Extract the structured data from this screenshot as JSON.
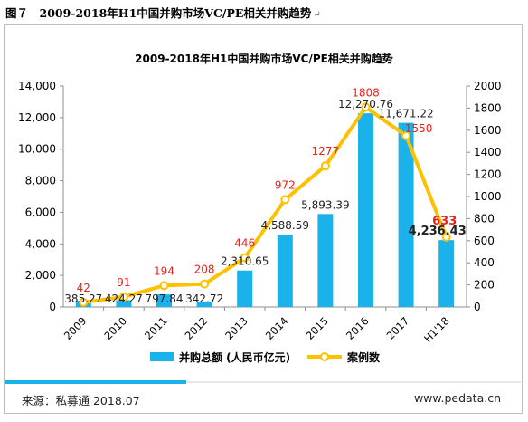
{
  "figure_label": "图７　2009-2018年H1中国并购市场VC/PE相关并购趋势",
  "title_mark": "↵",
  "source": "来源：私募通 2018.07",
  "website": "www.pedata.cn",
  "colors": {
    "bar": "#1ab2ea",
    "line": "#ffc000",
    "count_label": "#e8221b",
    "value_label": "#222222",
    "footer_bar": "#1ab2ea"
  },
  "chart_data": {
    "type": "bar+line",
    "title": "2009-2018年H1中国并购市场VC/PE相关并购趋势",
    "categories": [
      "2009",
      "2010",
      "2011",
      "2012",
      "2013",
      "2014",
      "2015",
      "2016",
      "2017",
      "H1'18"
    ],
    "series": [
      {
        "name": "并购总额 (人民币亿元)",
        "type": "bar",
        "axis": "left",
        "values": [
          385.27,
          424.27,
          797.84,
          342.72,
          2310.65,
          4588.59,
          5893.39,
          12270.76,
          11671.22,
          4236.43
        ],
        "labels": [
          "385.27",
          "424.27",
          "797.84",
          "342.72",
          "2,310.65",
          "4,588.59",
          "5,893.39",
          "12,270.76",
          "11,671.22",
          "4,236.43"
        ]
      },
      {
        "name": "案例数",
        "type": "line",
        "axis": "right",
        "values": [
          42,
          91,
          194,
          208,
          446,
          972,
          1277,
          1808,
          1550,
          633
        ],
        "labels": [
          "42",
          "91",
          "194",
          "208",
          "446",
          "972",
          "1277",
          "1808",
          "1550",
          "633"
        ]
      }
    ],
    "y_left": {
      "min": 0,
      "max": 14000,
      "step": 2000,
      "ticks": [
        "0",
        "2,000",
        "4,000",
        "6,000",
        "8,000",
        "10,000",
        "12,000",
        "14,000"
      ]
    },
    "y_right": {
      "min": 0,
      "max": 2000,
      "step": 200,
      "ticks": [
        "0",
        "200",
        "400",
        "600",
        "800",
        "1000",
        "1200",
        "1400",
        "1600",
        "1800",
        "2000"
      ]
    },
    "grid": false,
    "legend": "bottom"
  }
}
